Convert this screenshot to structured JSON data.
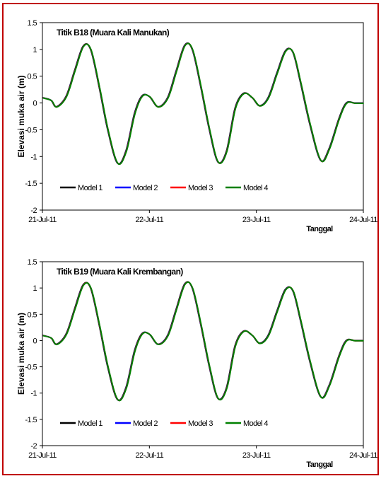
{
  "chart_data": [
    {
      "type": "line",
      "title": "Titik B18 (Muara Kali Manukan)",
      "xlabel": "Tanggal",
      "ylabel": "Elevasi muka air (m)",
      "x_ticks": [
        "21-Jul-11",
        "22-Jul-11",
        "23-Jul-11",
        "24-Jul-11"
      ],
      "x_range_days": [
        0,
        3
      ],
      "y_ticks": [
        "1.5",
        "1",
        "0.5",
        "0",
        "-0.5",
        "-1",
        "-1.5",
        "-2"
      ],
      "ylim": [
        -2,
        1.5
      ],
      "grid": false,
      "legend_position": "bottom-left",
      "series": [
        {
          "name": "Model 1",
          "color": "#000000"
        },
        {
          "name": "Model 2",
          "color": "#0000ff"
        },
        {
          "name": "Model 3",
          "color": "#ff0000"
        },
        {
          "name": "Model 4",
          "color": "#008000"
        }
      ],
      "x": [
        0,
        0.08,
        0.13,
        0.22,
        0.3,
        0.38,
        0.45,
        0.53,
        0.61,
        0.7,
        0.78,
        0.86,
        0.93,
        1.0,
        1.08,
        1.17,
        1.25,
        1.33,
        1.4,
        1.48,
        1.56,
        1.64,
        1.72,
        1.8,
        1.88,
        1.96,
        2.03,
        2.11,
        2.19,
        2.27,
        2.34,
        2.41,
        2.5,
        2.6,
        2.68,
        2.77,
        2.84,
        2.92,
        3.0
      ],
      "y": [
        0.1,
        0.05,
        -0.07,
        0.12,
        0.6,
        1.06,
        1.0,
        0.3,
        -0.5,
        -1.12,
        -0.9,
        -0.2,
        0.13,
        0.12,
        -0.07,
        0.1,
        0.6,
        1.08,
        1.0,
        0.3,
        -0.5,
        -1.1,
        -0.9,
        -0.1,
        0.18,
        0.1,
        -0.05,
        0.1,
        0.55,
        0.97,
        0.95,
        0.4,
        -0.4,
        -1.07,
        -0.85,
        -0.3,
        0.0,
        0.0,
        0.0
      ]
    },
    {
      "type": "line",
      "title": "Titik B19 (Muara Kali Krembangan)",
      "xlabel": "Tanggal",
      "ylabel": "Elevasi muka air (m)",
      "x_ticks": [
        "21-Jul-11",
        "22-Jul-11",
        "23-Jul-11",
        "24-Jul-11"
      ],
      "x_range_days": [
        0,
        3
      ],
      "y_ticks": [
        "1.5",
        "1",
        "0.5",
        "0",
        "-0.5",
        "-1",
        "-1.5",
        "-2"
      ],
      "ylim": [
        -2,
        1.5
      ],
      "grid": false,
      "legend_position": "bottom-left",
      "series": [
        {
          "name": "Model 1",
          "color": "#000000"
        },
        {
          "name": "Model 2",
          "color": "#0000ff"
        },
        {
          "name": "Model 3",
          "color": "#ff0000"
        },
        {
          "name": "Model 4",
          "color": "#008000"
        }
      ],
      "x": [
        0,
        0.08,
        0.13,
        0.22,
        0.3,
        0.38,
        0.45,
        0.53,
        0.61,
        0.7,
        0.78,
        0.86,
        0.93,
        1.0,
        1.08,
        1.17,
        1.25,
        1.33,
        1.4,
        1.48,
        1.56,
        1.64,
        1.72,
        1.8,
        1.88,
        1.96,
        2.03,
        2.11,
        2.19,
        2.27,
        2.34,
        2.41,
        2.5,
        2.6,
        2.68,
        2.77,
        2.84,
        2.92,
        3.0
      ],
      "y": [
        0.1,
        0.05,
        -0.07,
        0.12,
        0.6,
        1.06,
        1.0,
        0.3,
        -0.5,
        -1.12,
        -0.9,
        -0.2,
        0.13,
        0.12,
        -0.07,
        0.1,
        0.6,
        1.08,
        1.0,
        0.3,
        -0.5,
        -1.1,
        -0.9,
        -0.1,
        0.18,
        0.1,
        -0.05,
        0.1,
        0.55,
        0.97,
        0.95,
        0.4,
        -0.4,
        -1.07,
        -0.85,
        -0.3,
        0.0,
        0.0,
        0.0
      ]
    }
  ]
}
